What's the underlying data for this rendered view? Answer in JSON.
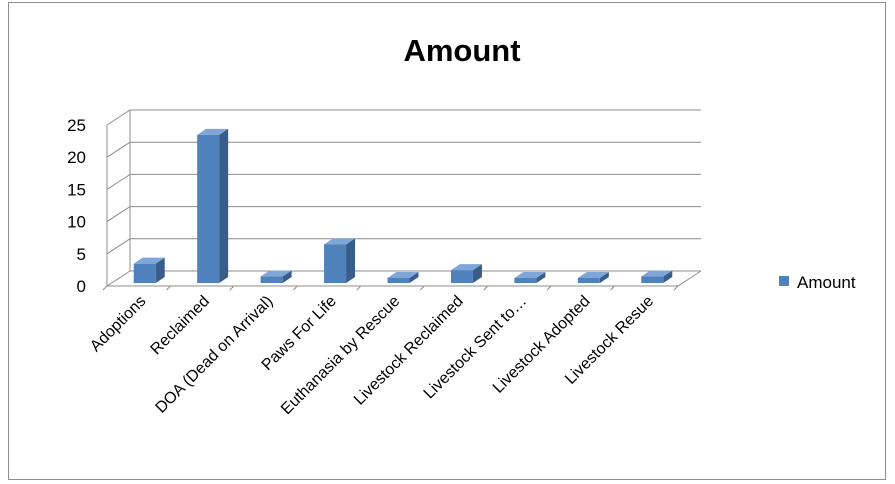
{
  "chart_data": {
    "type": "bar",
    "style": "3d-column",
    "title": "Amount",
    "categories": [
      "Adoptions",
      "Reclaimed",
      "DOA (Dead on Arrival)",
      "Paws For Life",
      "Euthanasia by Rescue",
      "Livestock Reclaimed",
      "Livestock Sent to…",
      "Livestock Adopted",
      "Livestock Resue"
    ],
    "series": [
      {
        "name": "Amount",
        "values": [
          3,
          23,
          1,
          6,
          0,
          2,
          0,
          0,
          1
        ]
      }
    ],
    "yticks": [
      "0",
      "5",
      "10",
      "15",
      "20",
      "25"
    ],
    "ylim": [
      0,
      25
    ],
    "grid": true,
    "legend_position": "right",
    "colors": {
      "front": "#4f81bd",
      "side": "#385d8a",
      "top": "#7ea6d8",
      "grid": "#8c8c8c"
    }
  }
}
